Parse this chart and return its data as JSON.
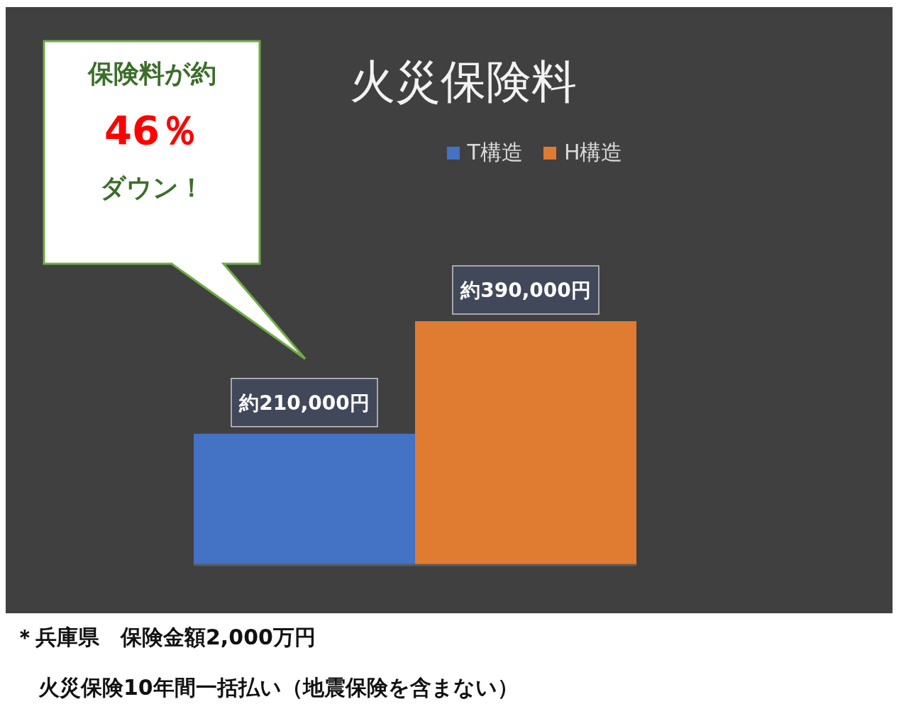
{
  "chart_data": {
    "type": "bar",
    "title": "火災保険料",
    "categories": [
      null
    ],
    "series": [
      {
        "name": "T構造",
        "color": "#4472c4",
        "values": [
          210000
        ],
        "value_labels": [
          "約210,000円"
        ]
      },
      {
        "name": "H構造",
        "color": "#e07b32",
        "values": [
          390000
        ],
        "value_labels": [
          "約390,000円"
        ]
      }
    ],
    "legend": "top",
    "grid": false,
    "annotations": [
      "保険料が約",
      "46％",
      "ダウン！",
      "＊兵庫県　保険金額2,000万円",
      "火災保険10年間一括払い（地震保険を含まない）"
    ]
  }
}
